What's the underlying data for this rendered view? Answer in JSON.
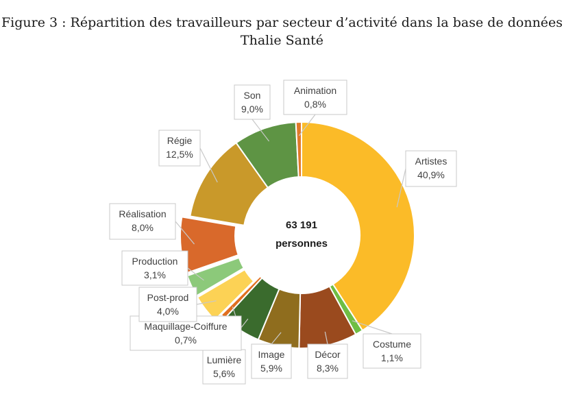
{
  "title": {
    "line1": "Figure 3 : Répartition des travailleurs par secteur d’activité dans la base de données",
    "line2": "Thalie Santé"
  },
  "chart_data": {
    "type": "pie",
    "variant": "donut",
    "title": "Figure 3 : Répartition des travailleurs par secteur d’activité dans la base de données Thalie Santé",
    "center_label": {
      "line1": "63 191",
      "line2": "personnes"
    },
    "start_angle_deg": 0,
    "direction": "clockwise",
    "slices": [
      {
        "name": "Artistes",
        "value": 40.9,
        "label": "40,9%",
        "color": "#fbbb28",
        "offset": false
      },
      {
        "name": "Costume",
        "value": 1.1,
        "label": "1,1%",
        "color": "#6fbe44",
        "offset": false
      },
      {
        "name": "Décor",
        "value": 8.3,
        "label": "8,3%",
        "color": "#9a4a1e",
        "offset": false
      },
      {
        "name": "Image",
        "value": 5.9,
        "label": "5,9%",
        "color": "#8f6d1e",
        "offset": false
      },
      {
        "name": "Lumière",
        "value": 5.6,
        "label": "5,6%",
        "color": "#3a6b2d",
        "offset": false
      },
      {
        "name": "Maquillage-Coiffure",
        "value": 0.7,
        "label": "0,7%",
        "color": "#e06f1f",
        "offset": false
      },
      {
        "name": "Post-prod",
        "value": 4.0,
        "label": "4,0%",
        "color": "#fcd255",
        "offset": true
      },
      {
        "name": "Production",
        "value": 3.1,
        "label": "3,1%",
        "color": "#8cc97a",
        "offset": true
      },
      {
        "name": "Réalisation",
        "value": 8.0,
        "label": "8,0%",
        "color": "#d9692b",
        "offset": true
      },
      {
        "name": "Régie",
        "value": 12.5,
        "label": "12,5%",
        "color": "#c9992a",
        "offset": false
      },
      {
        "name": "Son",
        "value": 9.0,
        "label": "9,0%",
        "color": "#5e9444",
        "offset": false
      },
      {
        "name": "Animation",
        "value": 0.8,
        "label": "0,8%",
        "color": "#e07a2a",
        "offset": false
      }
    ],
    "legend": "none",
    "data_labels": "callouts"
  }
}
